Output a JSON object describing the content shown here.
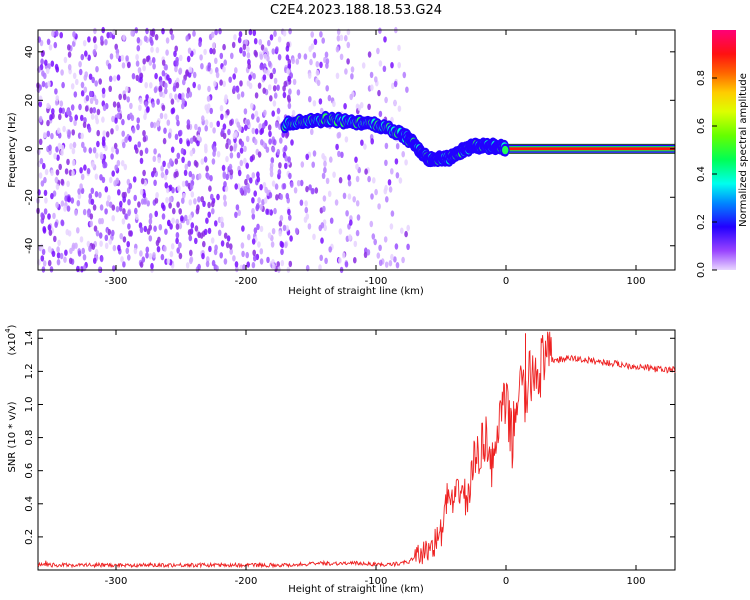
{
  "title": "C2E4.2023.188.18.53.G24",
  "chart_data": [
    {
      "type": "heatmap",
      "xlabel": "Height of straight line (km)",
      "ylabel": "Frequency (Hz)",
      "xlim": [
        -360,
        130
      ],
      "ylim": [
        -50,
        49
      ],
      "xticks": [
        -300,
        -200,
        -100,
        0,
        100
      ],
      "yticks": [
        -40,
        -20,
        0,
        20,
        40
      ],
      "colorbar": {
        "label": "Normalized spectral amplitude",
        "range": [
          0.0,
          1.0
        ],
        "ticks": [
          0.0,
          0.2,
          0.4,
          0.6,
          0.8
        ],
        "colors": [
          "#cc99ff",
          "#8800ff",
          "#2200ff",
          "#00aaff",
          "#00ffbb",
          "#22ff00",
          "#ccff00",
          "#ffcc00",
          "#ff6600",
          "#ff0000",
          "#ff0066"
        ]
      },
      "ridge": {
        "x": [
          -170,
          -160,
          -150,
          -140,
          -130,
          -120,
          -110,
          -100,
          -90,
          -80,
          -75,
          -70,
          -65,
          -60,
          -55,
          -50,
          -45,
          -40,
          -35,
          -30,
          -25,
          -20,
          -15,
          -10,
          -5,
          0,
          20,
          60,
          130
        ],
        "y": [
          10,
          11,
          12,
          12,
          12,
          11,
          11,
          10,
          8,
          6,
          4,
          2,
          -2,
          -4,
          -4,
          -4,
          -4,
          -3,
          -1,
          0,
          1,
          1,
          1,
          1,
          1,
          0,
          0,
          0,
          0
        ]
      },
      "noise_region": {
        "x_from": -360,
        "x_to": -75
      }
    },
    {
      "type": "line",
      "xlabel": "Height of straight line (km)",
      "ylabel": "SNR (10 * v/v)",
      "multiplier": "(x10",
      "multiplier_exp": "4",
      "multiplier_close": ")",
      "xlim": [
        -360,
        130
      ],
      "ylim": [
        0,
        1.45
      ],
      "xticks": [
        -300,
        -200,
        -100,
        0,
        100
      ],
      "yticks": [
        0.2,
        0.4,
        0.6,
        0.8,
        1.0,
        1.2,
        1.4
      ],
      "color": "#ee2222",
      "x": [
        -360,
        -300,
        -250,
        -200,
        -170,
        -140,
        -110,
        -90,
        -75,
        -60,
        -50,
        -45,
        -40,
        -35,
        -30,
        -25,
        -20,
        -15,
        -10,
        -5,
        0,
        5,
        10,
        15,
        20,
        25,
        30,
        35,
        40,
        50,
        60,
        70,
        80,
        90,
        100,
        110,
        120,
        130
      ],
      "y": [
        0.03,
        0.03,
        0.03,
        0.03,
        0.03,
        0.04,
        0.04,
        0.03,
        0.05,
        0.12,
        0.22,
        0.45,
        0.38,
        0.52,
        0.4,
        0.65,
        0.72,
        0.82,
        0.6,
        0.92,
        1.0,
        0.78,
        1.15,
        1.03,
        1.2,
        1.22,
        1.24,
        1.27,
        1.27,
        1.28,
        1.27,
        1.26,
        1.25,
        1.24,
        1.23,
        1.22,
        1.21,
        1.21
      ],
      "spikes": {
        "x": [
          15
        ],
        "y": [
          1.43
        ]
      }
    }
  ]
}
